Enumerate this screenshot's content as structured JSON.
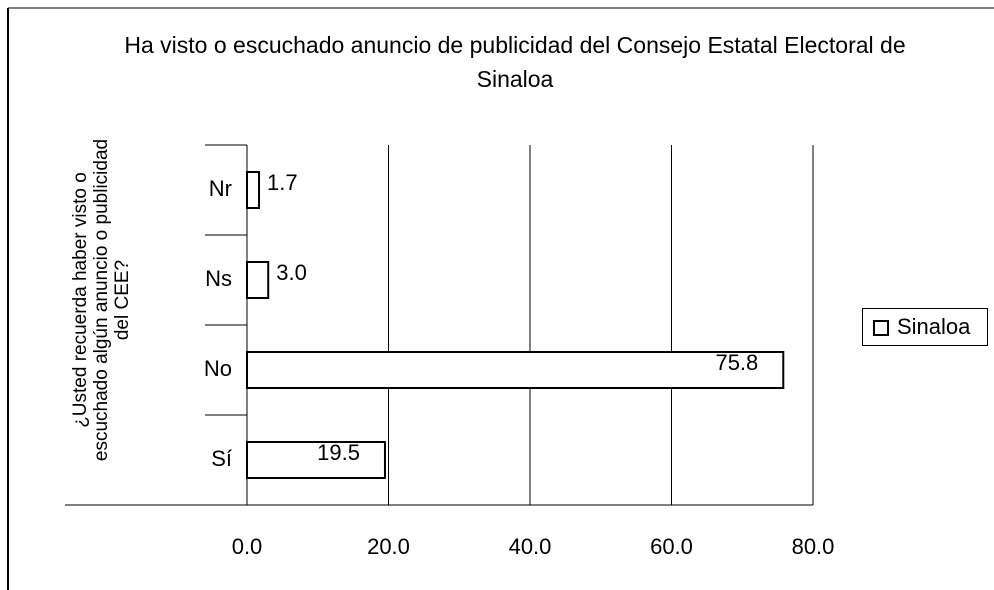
{
  "chart_data": {
    "type": "bar",
    "orientation": "horizontal",
    "title": "Ha visto o escuchado anuncio de publicidad del Consejo Estatal Electoral de Sinaloa",
    "y_label": "¿Usted recuerda haber visto o escuchado algún anuncio o publicidad del CEE?",
    "categories": [
      "Nr",
      "Ns",
      "No",
      "Sí"
    ],
    "series": [
      {
        "name": "Sinaloa",
        "color": "#ffffff",
        "values": [
          1.7,
          3.0,
          75.8,
          19.5
        ],
        "value_labels": [
          "1.7",
          "3.0",
          "75.8",
          "19.5"
        ]
      }
    ],
    "xlim": [
      0,
      80
    ],
    "xticks": [
      {
        "value": 0,
        "label": "0.0"
      },
      {
        "value": 20,
        "label": "20.0"
      },
      {
        "value": 40,
        "label": "40.0"
      },
      {
        "value": 60,
        "label": "60.0"
      },
      {
        "value": 80,
        "label": "80.0"
      }
    ],
    "grid": true,
    "legend": "right"
  }
}
